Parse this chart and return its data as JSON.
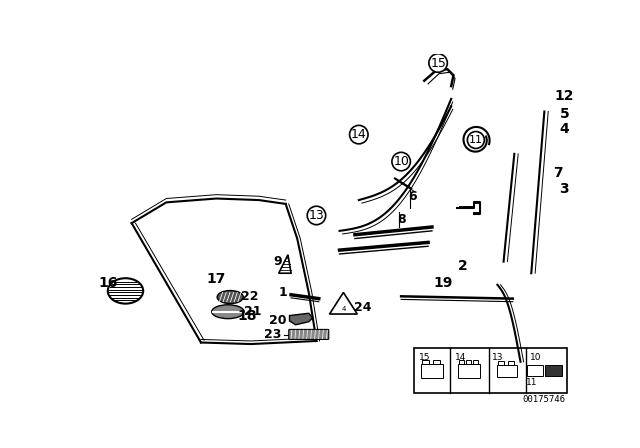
{
  "bg_color": "#ffffff",
  "line_color": "#000000",
  "fig_width": 6.4,
  "fig_height": 4.48,
  "part_number": "00175746"
}
